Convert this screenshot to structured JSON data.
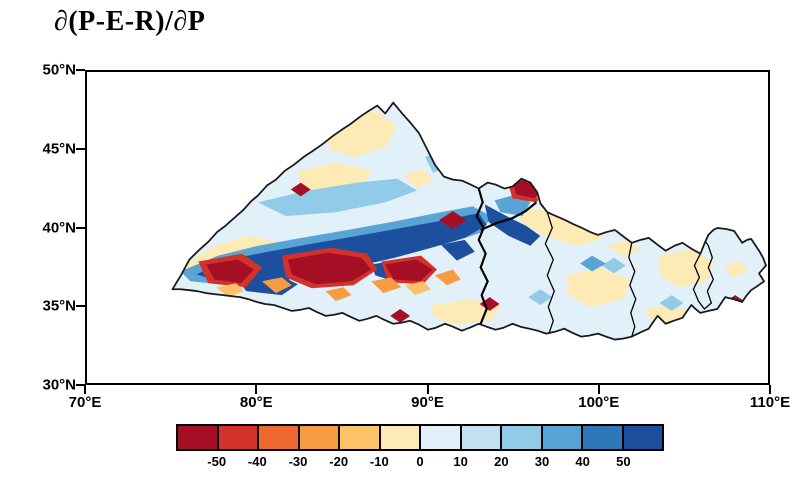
{
  "figure": {
    "title": "∂(P-E-R)/∂P"
  },
  "chart_data": {
    "type": "heatmap",
    "subtype": "filled-contour geographic map with region outline",
    "title": "∂(P-E-R)/∂P",
    "x_axis": {
      "ticks": [
        "70°E",
        "80°E",
        "90°E",
        "100°E",
        "110°E"
      ],
      "range": [
        70,
        110
      ],
      "unit": "degrees east"
    },
    "y_axis": {
      "ticks": [
        "50°N",
        "45°N",
        "40°N",
        "35°N",
        "30°N"
      ],
      "range": [
        30,
        50
      ],
      "unit": "degrees north"
    },
    "colorbar": {
      "orientation": "horizontal",
      "tick_labels": [
        "-50",
        "-40",
        "-30",
        "-20",
        "-10",
        "0",
        "10",
        "20",
        "30",
        "40",
        "50"
      ],
      "colors": [
        "#a50f26",
        "#d3322a",
        "#ee6830",
        "#f89c44",
        "#fcc269",
        "#fdeab4",
        "#e2f0f9",
        "#c3e2f3",
        "#92cbe8",
        "#58a4d4",
        "#2e78ba",
        "#1c4f9e"
      ]
    },
    "map_features": [
      {
        "area": "≈36.5–40°N, 77–93°E",
        "signal": "strong positive band, values > 40 (dark blue)"
      },
      {
        "area": "patches inside band, ≈35.5–38.5°N, 77–91°E",
        "signal": "strong negative, values < -50 (dark red)"
      },
      {
        "area": "≈42°N, 95–96°E",
        "signal": "strong negative patch, values < -50"
      },
      {
        "area": "remainder of outlined region",
        "signal": "weak values, mostly between -10 and 20 (pale yellow / pale blue)"
      }
    ]
  }
}
